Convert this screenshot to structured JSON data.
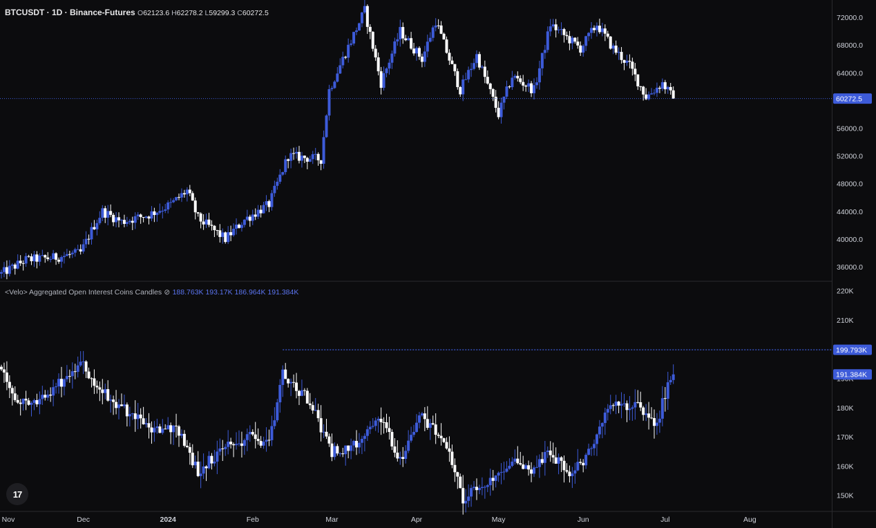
{
  "header": {
    "symbol": "BTCUSDT · 1D · Binance-Futures",
    "ohlc": [
      {
        "k": "O",
        "v": "62123.6"
      },
      {
        "k": "H",
        "v": "62278.2"
      },
      {
        "k": "L",
        "v": "59299.3"
      },
      {
        "k": "C",
        "v": "60272.5"
      }
    ]
  },
  "oi_legend": {
    "title": "<Velo> Aggregated Open Interest Coins Candles",
    "icon": "eye-off-icon",
    "values": [
      "188.763K",
      "193.17K",
      "186.964K",
      "191.384K"
    ]
  },
  "tags": {
    "price_last": "60272.5",
    "oi_level": "199.793K",
    "oi_last": "191.384K"
  },
  "colors": {
    "up": "#3d5bd9",
    "down": "#ffffff",
    "bg": "#0c0c0e",
    "grid": "#1f1f23",
    "axis_text": "#d1d4dc"
  },
  "chart_data": [
    {
      "type": "candlestick",
      "title": "BTCUSDT · 1D · Binance-Futures",
      "x_range": [
        "2023-11-01",
        "2024-08-31"
      ],
      "y_range": [
        34000,
        74500
      ],
      "x_ticks": [
        "Nov",
        "Dec",
        "2024",
        "Feb",
        "Mar",
        "Apr",
        "May",
        "Jun",
        "Jul",
        "Aug"
      ],
      "y_ticks": [
        "36000.0",
        "40000.0",
        "44000.0",
        "48000.0",
        "52000.0",
        "56000.0",
        "60000.0",
        "64000.0",
        "68000.0",
        "72000.0"
      ],
      "last_price": 60272.5,
      "closes_anchors": [
        {
          "x": "2023-11-01",
          "y": 35000
        },
        {
          "x": "2023-11-10",
          "y": 37000
        },
        {
          "x": "2023-11-20",
          "y": 37300
        },
        {
          "x": "2023-11-30",
          "y": 38000
        },
        {
          "x": "2023-12-05",
          "y": 42000
        },
        {
          "x": "2023-12-08",
          "y": 44000
        },
        {
          "x": "2023-12-15",
          "y": 42500
        },
        {
          "x": "2023-12-25",
          "y": 43500
        },
        {
          "x": "2024-01-02",
          "y": 45000
        },
        {
          "x": "2024-01-08",
          "y": 47000
        },
        {
          "x": "2024-01-12",
          "y": 43000
        },
        {
          "x": "2024-01-22",
          "y": 40000
        },
        {
          "x": "2024-01-29",
          "y": 42800
        },
        {
          "x": "2024-02-07",
          "y": 45000
        },
        {
          "x": "2024-02-14",
          "y": 52000
        },
        {
          "x": "2024-02-26",
          "y": 51500
        },
        {
          "x": "2024-02-29",
          "y": 61500
        },
        {
          "x": "2024-03-05",
          "y": 66000
        },
        {
          "x": "2024-03-13",
          "y": 73000
        },
        {
          "x": "2024-03-19",
          "y": 62500
        },
        {
          "x": "2024-03-26",
          "y": 70000
        },
        {
          "x": "2024-04-03",
          "y": 66000
        },
        {
          "x": "2024-04-08",
          "y": 71500
        },
        {
          "x": "2024-04-17",
          "y": 61500
        },
        {
          "x": "2024-04-23",
          "y": 66500
        },
        {
          "x": "2024-05-01",
          "y": 58000
        },
        {
          "x": "2024-05-06",
          "y": 63500
        },
        {
          "x": "2024-05-14",
          "y": 61500
        },
        {
          "x": "2024-05-20",
          "y": 71000
        },
        {
          "x": "2024-05-31",
          "y": 67500
        },
        {
          "x": "2024-06-06",
          "y": 71000
        },
        {
          "x": "2024-06-12",
          "y": 67500
        },
        {
          "x": "2024-06-18",
          "y": 65000
        },
        {
          "x": "2024-06-24",
          "y": 60500
        },
        {
          "x": "2024-06-30",
          "y": 62500
        },
        {
          "x": "2024-07-04",
          "y": 60272.5
        }
      ]
    },
    {
      "type": "candlestick",
      "title": "<Velo> Aggregated Open Interest Coins Candles",
      "x_range": [
        "2023-11-01",
        "2024-08-31"
      ],
      "y_range": [
        144500,
        223000
      ],
      "y_ticks": [
        "150K",
        "160K",
        "170K",
        "180K",
        "190K",
        "200K",
        "210K",
        "220K"
      ],
      "level_line": 199.793,
      "last_value": 191.384,
      "closes_anchors": [
        {
          "x": "2023-11-01",
          "y": 194000
        },
        {
          "x": "2023-11-05",
          "y": 183000
        },
        {
          "x": "2023-11-12",
          "y": 181000
        },
        {
          "x": "2023-11-20",
          "y": 186000
        },
        {
          "x": "2023-11-30",
          "y": 196000
        },
        {
          "x": "2023-12-05",
          "y": 188000
        },
        {
          "x": "2023-12-15",
          "y": 180000
        },
        {
          "x": "2023-12-25",
          "y": 173000
        },
        {
          "x": "2024-01-05",
          "y": 172000
        },
        {
          "x": "2024-01-12",
          "y": 158000
        },
        {
          "x": "2024-01-22",
          "y": 167000
        },
        {
          "x": "2024-02-01",
          "y": 170000
        },
        {
          "x": "2024-02-07",
          "y": 168000
        },
        {
          "x": "2024-02-12",
          "y": 192000
        },
        {
          "x": "2024-02-22",
          "y": 182000
        },
        {
          "x": "2024-03-01",
          "y": 165000
        },
        {
          "x": "2024-03-10",
          "y": 167000
        },
        {
          "x": "2024-03-18",
          "y": 178000
        },
        {
          "x": "2024-03-26",
          "y": 162000
        },
        {
          "x": "2024-04-02",
          "y": 177000
        },
        {
          "x": "2024-04-12",
          "y": 168000
        },
        {
          "x": "2024-04-18",
          "y": 149000
        },
        {
          "x": "2024-04-28",
          "y": 155000
        },
        {
          "x": "2024-05-05",
          "y": 162000
        },
        {
          "x": "2024-05-12",
          "y": 158000
        },
        {
          "x": "2024-05-20",
          "y": 165000
        },
        {
          "x": "2024-05-27",
          "y": 157000
        },
        {
          "x": "2024-06-03",
          "y": 164000
        },
        {
          "x": "2024-06-10",
          "y": 180000
        },
        {
          "x": "2024-06-20",
          "y": 181000
        },
        {
          "x": "2024-06-28",
          "y": 174000
        },
        {
          "x": "2024-07-01",
          "y": 185000
        },
        {
          "x": "2024-07-04",
          "y": 191384
        }
      ]
    }
  ]
}
